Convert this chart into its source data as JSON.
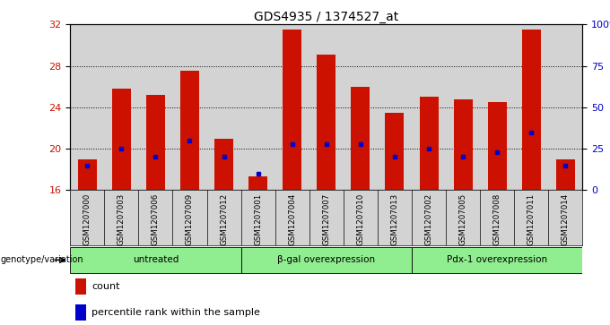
{
  "title": "GDS4935 / 1374527_at",
  "samples": [
    "GSM1207000",
    "GSM1207003",
    "GSM1207006",
    "GSM1207009",
    "GSM1207012",
    "GSM1207001",
    "GSM1207004",
    "GSM1207007",
    "GSM1207010",
    "GSM1207013",
    "GSM1207002",
    "GSM1207005",
    "GSM1207008",
    "GSM1207011",
    "GSM1207014"
  ],
  "counts": [
    19.0,
    25.8,
    25.2,
    27.5,
    21.0,
    17.3,
    31.5,
    29.1,
    26.0,
    23.5,
    25.0,
    24.8,
    24.5,
    31.5,
    19.0
  ],
  "percentile_values": [
    15,
    25,
    20,
    30,
    20,
    10,
    28,
    28,
    28,
    20,
    25,
    20,
    23,
    35,
    15
  ],
  "groups": [
    {
      "label": "untreated",
      "start": 0,
      "end": 5
    },
    {
      "label": "β-gal overexpression",
      "start": 5,
      "end": 10
    },
    {
      "label": "Pdx-1 overexpression",
      "start": 10,
      "end": 15
    }
  ],
  "ylim_left": [
    16,
    32
  ],
  "ylim_right": [
    0,
    100
  ],
  "yticks_left": [
    16,
    20,
    24,
    28,
    32
  ],
  "yticks_right": [
    0,
    25,
    50,
    75,
    100
  ],
  "bar_color": "#cc1100",
  "percentile_color": "#0000cc",
  "group_color": "#90ee90",
  "plot_bg_color": "#d3d3d3",
  "genotype_label": "genotype/variation"
}
